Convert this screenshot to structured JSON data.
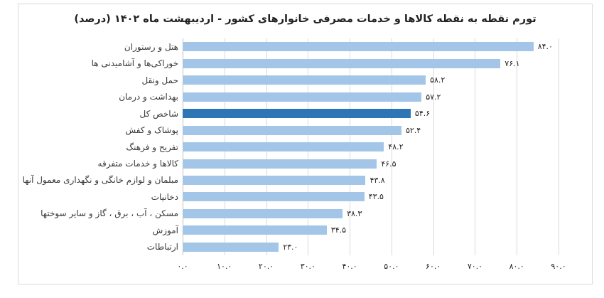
{
  "chart_data": {
    "type": "bar",
    "orientation": "horizontal",
    "title": "تورم نقطه به نقطه کالاها و خدمات مصرفی خانوارهای کشور - اردیبهشت ماه ۱۴۰۲ (درصد)",
    "categories": [
      "هتل و رستوران",
      "خوراکی‌ها و آشامیدنی ها",
      "حمل ونقل",
      "بهداشت و درمان",
      "شاخص کل",
      "پوشاک و کفش",
      "تفریح و فرهنگ",
      "کالاها و خدمات متفرقه",
      "مبلمان و لوازم خانگی و نگهداری معمول آنها",
      "دخانیات",
      "مسکن ، آب ، برق ، گاز و سایر سوختها",
      "آموزش",
      "ارتباطات"
    ],
    "values": [
      84.0,
      76.1,
      58.2,
      57.2,
      54.6,
      52.4,
      48.2,
      46.5,
      43.8,
      43.5,
      38.3,
      34.5,
      23.0
    ],
    "value_labels_fa": [
      "۸۴.۰",
      "۷۶.۱",
      "۵۸.۲",
      "۵۷.۲",
      "۵۴.۶",
      "۵۲.۴",
      "۴۸.۲",
      "۴۶.۵",
      "۴۳.۸",
      "۴۳.۵",
      "۳۸.۳",
      "۳۴.۵",
      "۲۳.۰"
    ],
    "highlight_index": 4,
    "highlighted_category": "شاخص کل",
    "xlim": [
      0,
      90
    ],
    "x_ticks": [
      0,
      10,
      20,
      30,
      40,
      50,
      60,
      70,
      80,
      90
    ],
    "x_tick_labels_fa": [
      "۰.۰",
      "۱۰.۰",
      "۲۰.۰",
      "۳۰.۰",
      "۴۰.۰",
      "۵۰.۰",
      "۶۰.۰",
      "۷۰.۰",
      "۸۰.۰",
      "۹۰.۰"
    ],
    "grid": "vertical",
    "legend": "none",
    "colors": {
      "bar": "#A3C6E8",
      "highlight_bar": "#2E75B6",
      "gridline": "#D9D9D9",
      "title": "#222222",
      "value_label": "#262626",
      "category_label": "#3a3a3a",
      "frame_border": "#D9D9D9"
    }
  }
}
